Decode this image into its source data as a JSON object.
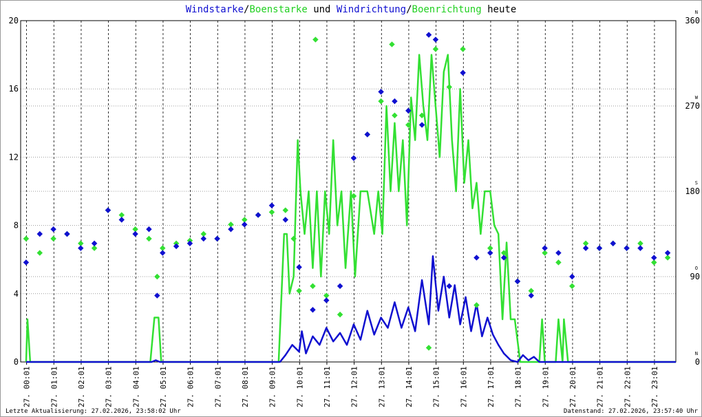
{
  "chart_data": {
    "type": "line",
    "title_parts": [
      "/",
      " und ",
      "/",
      " heute"
    ],
    "xlim": [
      -0.2,
      23.8
    ],
    "xticks": [
      {
        "value": 0.017,
        "label": "27. 00:01"
      },
      {
        "value": 1.017,
        "label": "27. 01:01"
      },
      {
        "value": 2.017,
        "label": "27. 02:01"
      },
      {
        "value": 3.017,
        "label": "27. 03:01"
      },
      {
        "value": 4.017,
        "label": "27. 04:01"
      },
      {
        "value": 5.017,
        "label": "27. 05:01"
      },
      {
        "value": 6.017,
        "label": "27. 06:01"
      },
      {
        "value": 7.017,
        "label": "27. 07:01"
      },
      {
        "value": 8.017,
        "label": "27. 08:01"
      },
      {
        "value": 9.017,
        "label": "27. 09:01"
      },
      {
        "value": 10.017,
        "label": "27. 10:01"
      },
      {
        "value": 11.017,
        "label": "27. 11:01"
      },
      {
        "value": 12.017,
        "label": "27. 12:01"
      },
      {
        "value": 13.017,
        "label": "27. 13:01"
      },
      {
        "value": 14.017,
        "label": "27. 14:01"
      },
      {
        "value": 15.017,
        "label": "27. 15:01"
      },
      {
        "value": 16.017,
        "label": "27. 16:01"
      },
      {
        "value": 17.017,
        "label": "27. 17:01"
      },
      {
        "value": 18.017,
        "label": "27. 18:01"
      },
      {
        "value": 19.017,
        "label": "27. 19:01"
      },
      {
        "value": 20.017,
        "label": "27. 20:01"
      },
      {
        "value": 21.017,
        "label": "27. 21:01"
      },
      {
        "value": 22.017,
        "label": "27. 22:01"
      },
      {
        "value": 23.017,
        "label": "27. 23:01"
      }
    ],
    "ylim": [
      0,
      20
    ],
    "yticks": [
      0,
      4,
      8,
      12,
      16,
      20
    ],
    "y2lim": [
      0,
      360
    ],
    "y2ticks": [
      0,
      90,
      180,
      270,
      360
    ],
    "y2tick_letters": [
      "N",
      "O",
      "S",
      "W",
      "N"
    ],
    "grid": true,
    "series": [
      {
        "name": "Windstarke",
        "color": "#1010d0",
        "mode": "line",
        "x": [
          0,
          4.6,
          4.75,
          4.9,
          9.3,
          9.5,
          9.75,
          10.0,
          10.1,
          10.25,
          10.5,
          10.75,
          11.0,
          11.25,
          11.5,
          11.75,
          12.0,
          12.25,
          12.5,
          12.75,
          13.0,
          13.25,
          13.5,
          13.75,
          14.0,
          14.25,
          14.5,
          14.75,
          14.9,
          15.1,
          15.3,
          15.5,
          15.7,
          15.9,
          16.1,
          16.3,
          16.5,
          16.7,
          16.9,
          17.1,
          17.3,
          17.5,
          17.75,
          18.0,
          18.2,
          18.4,
          18.6,
          18.8,
          23.8
        ],
        "values": [
          0,
          0,
          0.1,
          0,
          0,
          0.4,
          1.0,
          0.6,
          1.8,
          0.5,
          1.5,
          1.0,
          2.0,
          1.2,
          1.7,
          1.0,
          2.2,
          1.3,
          3.0,
          1.6,
          2.6,
          2.0,
          3.5,
          2.0,
          3.2,
          1.8,
          4.8,
          2.2,
          6.2,
          3.0,
          5.0,
          2.6,
          4.5,
          2.2,
          3.8,
          1.8,
          3.4,
          1.5,
          2.6,
          1.6,
          1.0,
          0.5,
          0.1,
          0.0,
          0.4,
          0.1,
          0.3,
          0.0,
          0
        ]
      },
      {
        "name": "Boenstarke",
        "color": "#33e033",
        "mode": "line",
        "x": [
          0,
          0.05,
          0.15,
          4.55,
          4.7,
          4.85,
          4.95,
          9.25,
          9.45,
          9.55,
          9.65,
          9.8,
          9.95,
          10.05,
          10.2,
          10.35,
          10.5,
          10.65,
          10.8,
          10.95,
          11.1,
          11.25,
          11.4,
          11.55,
          11.7,
          11.9,
          12.05,
          12.25,
          12.5,
          12.75,
          12.9,
          13.05,
          13.2,
          13.35,
          13.5,
          13.65,
          13.8,
          13.95,
          14.1,
          14.25,
          14.4,
          14.55,
          14.7,
          14.85,
          15.0,
          15.15,
          15.3,
          15.45,
          15.6,
          15.75,
          15.9,
          16.05,
          16.2,
          16.35,
          16.5,
          16.65,
          16.8,
          17.0,
          17.15,
          17.3,
          17.45,
          17.6,
          17.75,
          17.9,
          18.1,
          18.8,
          18.9,
          19.0,
          19.4,
          19.5,
          19.65,
          19.7,
          19.85,
          23.8
        ],
        "values": [
          0,
          2.5,
          0,
          0,
          2.6,
          2.6,
          0,
          0,
          7.5,
          7.5,
          4.0,
          5.0,
          13,
          10,
          7.5,
          10,
          5.5,
          10,
          5.0,
          10,
          7.5,
          13,
          8.0,
          10,
          5.5,
          10,
          5.0,
          10,
          10,
          7.5,
          10,
          7.5,
          15,
          10,
          14,
          10,
          13,
          8.0,
          15.5,
          13,
          18,
          15,
          13,
          18,
          15,
          12,
          17,
          18,
          13,
          10,
          16,
          10.5,
          13,
          9,
          10.5,
          7.5,
          10,
          10,
          8,
          7.5,
          2.5,
          7,
          2.5,
          2.5,
          0,
          0,
          2.5,
          0,
          0,
          2.5,
          0,
          2.5,
          0,
          0
        ]
      },
      {
        "name": "Windrichtung",
        "color": "#1010d0",
        "mode": "markers",
        "axis": "y2",
        "x": [
          0,
          0.5,
          1,
          1.5,
          2,
          2.5,
          3,
          3.5,
          4,
          4.5,
          4.8,
          5,
          5.5,
          6,
          6.5,
          7,
          7.5,
          8,
          8.5,
          9,
          9.5,
          10,
          10.5,
          11,
          11.5,
          12,
          12.5,
          13,
          13.5,
          14,
          14.5,
          14.75,
          15,
          15.5,
          16,
          16.5,
          17,
          17.5,
          18,
          18.5,
          19,
          19.5,
          20,
          20.5,
          21,
          21.5,
          22,
          22.5,
          23,
          23.5
        ],
        "values": [
          105,
          135,
          140,
          135,
          120,
          125,
          160,
          150,
          135,
          140,
          70,
          115,
          122,
          125,
          130,
          130,
          140,
          145,
          155,
          165,
          150,
          100,
          55,
          65,
          80,
          215,
          240,
          285,
          275,
          265,
          250,
          345,
          340,
          80,
          305,
          110,
          115,
          110,
          85,
          70,
          120,
          115,
          90,
          120,
          120,
          125,
          120,
          120,
          110,
          115
        ]
      },
      {
        "name": "Boenrichtung",
        "color": "#33e033",
        "mode": "markers",
        "axis": "y2",
        "x": [
          0,
          0.5,
          1,
          1.5,
          2,
          2.5,
          3,
          3.5,
          4,
          4.5,
          4.8,
          5,
          5.5,
          6,
          6.5,
          7,
          7.5,
          8,
          8.5,
          9,
          9.5,
          9.8,
          10,
          10.5,
          10.6,
          11,
          11.5,
          12,
          12.5,
          13,
          13.4,
          13.5,
          14,
          14.5,
          14.75,
          15,
          15.5,
          16,
          16.5,
          17,
          17.5,
          18,
          18.5,
          19,
          19.5,
          20,
          20.5,
          21,
          21.5,
          22,
          22.5,
          23,
          23.5
        ],
        "values": [
          130,
          115,
          130,
          135,
          125,
          120,
          160,
          155,
          140,
          130,
          90,
          120,
          125,
          128,
          135,
          130,
          145,
          150,
          155,
          158,
          160,
          130,
          75,
          80,
          340,
          70,
          50,
          175,
          240,
          275,
          335,
          260,
          250,
          260,
          15,
          330,
          290,
          330,
          60,
          120,
          115,
          85,
          75,
          115,
          105,
          80,
          125,
          120,
          125,
          120,
          125,
          105,
          110
        ]
      }
    ],
    "footer_left": "Letzte Aktualisierung: 27.02.2026, 23:58:02 Uhr",
    "footer_right": "Datenstand: 27.02.2026, 23:57:40 Uhr"
  }
}
